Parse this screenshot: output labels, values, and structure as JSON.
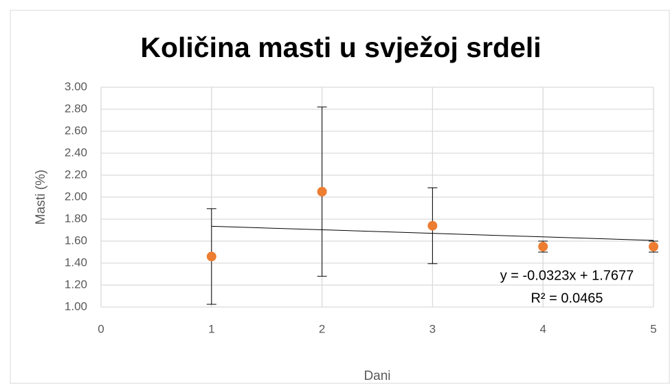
{
  "chart_data": {
    "type": "scatter",
    "title": "Količina masti u svježoj srdeli",
    "x_label": "Dani",
    "y_label": "Masti (%)",
    "series": [
      {
        "name": "Masti",
        "color": "#ed7d31",
        "x": [
          1,
          2,
          3,
          4,
          5
        ],
        "values": [
          1.46,
          2.05,
          1.74,
          1.55,
          1.55
        ],
        "yerr": [
          0.435,
          0.77,
          0.345,
          0.05,
          0.05
        ]
      }
    ],
    "trendline": {
      "slope": -0.0323,
      "intercept": 1.7677,
      "xlim": [
        1,
        5
      ],
      "color": "#000000",
      "equation": "y = -0.0323x + 1.7677",
      "r2_label": "R² = 0.0465"
    },
    "xlim": [
      0,
      5
    ],
    "xticks": [
      0,
      1,
      2,
      3,
      4,
      5
    ],
    "ylim": [
      1,
      3
    ],
    "yticks": [
      {
        "value": 1,
        "label": "1.00"
      },
      {
        "value": 1.2,
        "label": "1.20"
      },
      {
        "value": 1.4,
        "label": "1.40"
      },
      {
        "value": 1.6,
        "label": "1.60"
      },
      {
        "value": 1.8,
        "label": "1.80"
      },
      {
        "value": 2,
        "label": "2.00"
      },
      {
        "value": 2.2,
        "label": "2.20"
      },
      {
        "value": 2.4,
        "label": "2.40"
      },
      {
        "value": 2.6,
        "label": "2.60"
      },
      {
        "value": 2.8,
        "label": "2.80"
      },
      {
        "value": 3,
        "label": "3.00"
      }
    ],
    "grid": true
  }
}
